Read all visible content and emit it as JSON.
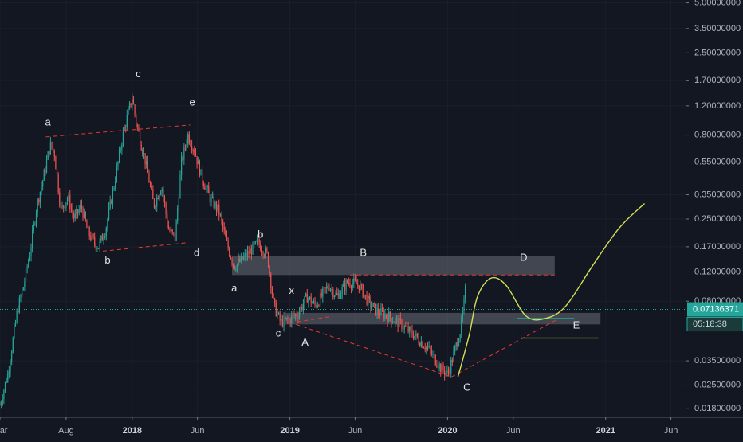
{
  "chart_data": {
    "type": "candlestick",
    "title": "",
    "xlabel": "",
    "ylabel": "",
    "y_scale": "log",
    "ylim": [
      0.016,
      5.2
    ],
    "x_range": [
      "2017-03-01",
      "2021-07-05"
    ],
    "y_ticks": [
      {
        "value": 5.0,
        "label": "5.00000000"
      },
      {
        "value": 3.5,
        "label": "3.50000000"
      },
      {
        "value": 2.5,
        "label": "2.50000000"
      },
      {
        "value": 1.7,
        "label": "1.70000000"
      },
      {
        "value": 1.2,
        "label": "1.20000000"
      },
      {
        "value": 0.8,
        "label": "0.80000000"
      },
      {
        "value": 0.55,
        "label": "0.55000000"
      },
      {
        "value": 0.35,
        "label": "0.35000000"
      },
      {
        "value": 0.25,
        "label": "0.25000000"
      },
      {
        "value": 0.17,
        "label": "0.17000000"
      },
      {
        "value": 0.12,
        "label": "0.12000000"
      },
      {
        "value": 0.08,
        "label": "0.08000000"
      },
      {
        "value": 0.035,
        "label": "0.03500000"
      },
      {
        "value": 0.025,
        "label": "0.02500000"
      },
      {
        "value": 0.018,
        "label": "0.01800000"
      }
    ],
    "x_ticks": [
      {
        "date": "2017-03-01",
        "label": "Mar",
        "bold": false
      },
      {
        "date": "2017-08-01",
        "label": "Aug",
        "bold": false
      },
      {
        "date": "2018-01-01",
        "label": "2018",
        "bold": true
      },
      {
        "date": "2018-06-01",
        "label": "Jun",
        "bold": false
      },
      {
        "date": "2019-01-01",
        "label": "2019",
        "bold": true
      },
      {
        "date": "2019-06-01",
        "label": "Jun",
        "bold": false
      },
      {
        "date": "2020-01-01",
        "label": "2020",
        "bold": true
      },
      {
        "date": "2020-06-01",
        "label": "Jun",
        "bold": false
      },
      {
        "date": "2021-01-01",
        "label": "2021",
        "bold": true
      },
      {
        "date": "2021-06-01",
        "label": "Jun",
        "bold": false
      }
    ],
    "price_path": [
      [
        "2017-03-01",
        0.019
      ],
      [
        "2017-03-20",
        0.03
      ],
      [
        "2017-04-10",
        0.07
      ],
      [
        "2017-04-25",
        0.1
      ],
      [
        "2017-05-10",
        0.16
      ],
      [
        "2017-05-25",
        0.3
      ],
      [
        "2017-06-10",
        0.45
      ],
      [
        "2017-06-25",
        0.7
      ],
      [
        "2017-07-05",
        0.62
      ],
      [
        "2017-07-20",
        0.28
      ],
      [
        "2017-08-05",
        0.34
      ],
      [
        "2017-08-20",
        0.25
      ],
      [
        "2017-09-05",
        0.3
      ],
      [
        "2017-09-20",
        0.21
      ],
      [
        "2017-10-05",
        0.18
      ],
      [
        "2017-10-15",
        0.17
      ],
      [
        "2017-11-01",
        0.22
      ],
      [
        "2017-11-20",
        0.4
      ],
      [
        "2017-12-10",
        0.8
      ],
      [
        "2018-01-01",
        1.35
      ],
      [
        "2018-01-10",
        0.95
      ],
      [
        "2018-02-01",
        0.55
      ],
      [
        "2018-02-20",
        0.3
      ],
      [
        "2018-03-10",
        0.4
      ],
      [
        "2018-03-25",
        0.22
      ],
      [
        "2018-04-10",
        0.19
      ],
      [
        "2018-04-25",
        0.55
      ],
      [
        "2018-05-10",
        0.8
      ],
      [
        "2018-05-25",
        0.65
      ],
      [
        "2018-06-10",
        0.45
      ],
      [
        "2018-07-01",
        0.33
      ],
      [
        "2018-07-20",
        0.28
      ],
      [
        "2018-08-10",
        0.17
      ],
      [
        "2018-08-25",
        0.13
      ],
      [
        "2018-09-10",
        0.14
      ],
      [
        "2018-10-01",
        0.16
      ],
      [
        "2018-10-20",
        0.18
      ],
      [
        "2018-11-10",
        0.15
      ],
      [
        "2018-11-25",
        0.075
      ],
      [
        "2018-12-10",
        0.06
      ],
      [
        "2019-01-01",
        0.062
      ],
      [
        "2019-01-20",
        0.068
      ],
      [
        "2019-02-10",
        0.085
      ],
      [
        "2019-03-01",
        0.075
      ],
      [
        "2019-04-01",
        0.1
      ],
      [
        "2019-04-20",
        0.085
      ],
      [
        "2019-05-15",
        0.105
      ],
      [
        "2019-06-10",
        0.1
      ],
      [
        "2019-06-30",
        0.08
      ],
      [
        "2019-07-20",
        0.07
      ],
      [
        "2019-08-15",
        0.065
      ],
      [
        "2019-09-15",
        0.058
      ],
      [
        "2019-10-15",
        0.05
      ],
      [
        "2019-11-15",
        0.042
      ],
      [
        "2019-12-15",
        0.032
      ],
      [
        "2020-01-01",
        0.029
      ],
      [
        "2020-01-15",
        0.038
      ],
      [
        "2020-02-01",
        0.055
      ],
      [
        "2020-02-12",
        0.095
      ]
    ],
    "horizontal_line": {
      "value": 0.07136371,
      "label": "0.07136371",
      "color": "#26a69a"
    },
    "countdown_label": "05:18:38",
    "zones": [
      {
        "from": "2018-08-20",
        "to": "2020-09-05",
        "low": 0.115,
        "high": 0.15
      },
      {
        "from": "2018-12-20",
        "to": "2020-12-20",
        "low": 0.058,
        "high": 0.068
      }
    ],
    "dashed_lines": [
      [
        [
          "2017-06-15",
          0.78
        ],
        [
          "2018-05-15",
          0.92
        ]
      ],
      [
        [
          "2017-10-25",
          0.16
        ],
        [
          "2018-05-10",
          0.18
        ]
      ],
      [
        [
          "2019-01-01",
          0.059
        ],
        [
          "2019-04-10",
          0.065
        ]
      ],
      [
        [
          "2019-05-20",
          0.115
        ],
        [
          "2020-09-05",
          0.115
        ]
      ],
      [
        [
          "2019-01-15",
          0.058
        ],
        [
          "2020-01-10",
          0.028
        ]
      ],
      [
        [
          "2020-01-10",
          0.028
        ],
        [
          "2020-09-10",
          0.062
        ]
      ]
    ],
    "projection_path": [
      [
        "2020-01-25",
        0.028
      ],
      [
        "2020-02-20",
        0.05
      ],
      [
        "2020-03-10",
        0.085
      ],
      [
        "2020-04-10",
        0.11
      ],
      [
        "2020-05-15",
        0.1
      ],
      [
        "2020-07-01",
        0.065
      ],
      [
        "2020-08-15",
        0.063
      ],
      [
        "2020-10-01",
        0.075
      ],
      [
        "2020-12-01",
        0.13
      ],
      [
        "2021-02-01",
        0.22
      ],
      [
        "2021-04-01",
        0.31
      ]
    ],
    "horizontal_marks": [
      {
        "from": "2020-06-10",
        "to": "2020-10-20",
        "value": 0.063,
        "color": "#26a69a"
      },
      {
        "from": "2020-06-20",
        "to": "2020-12-15",
        "value": 0.048,
        "color": "#c6cf3e"
      }
    ],
    "annotations": [
      {
        "text": "a",
        "date": "2017-06-20",
        "value": 0.95
      },
      {
        "text": "c",
        "date": "2018-01-15",
        "value": 1.85
      },
      {
        "text": "e",
        "date": "2018-05-20",
        "value": 1.25
      },
      {
        "text": "b",
        "date": "2017-11-05",
        "value": 0.14
      },
      {
        "text": "d",
        "date": "2018-05-30",
        "value": 0.155
      },
      {
        "text": "b",
        "date": "2018-10-25",
        "value": 0.2
      },
      {
        "text": "a",
        "date": "2018-08-25",
        "value": 0.095
      },
      {
        "text": "x",
        "date": "2019-01-05",
        "value": 0.092
      },
      {
        "text": "c",
        "date": "2018-12-05",
        "value": 0.051
      },
      {
        "text": "B",
        "date": "2019-06-20",
        "value": 0.155
      },
      {
        "text": "A",
        "date": "2019-02-05",
        "value": 0.045
      },
      {
        "text": "D",
        "date": "2020-06-25",
        "value": 0.145
      },
      {
        "text": "C",
        "date": "2020-02-15",
        "value": 0.024
      },
      {
        "text": "E",
        "date": "2020-10-25",
        "value": 0.057
      }
    ]
  }
}
